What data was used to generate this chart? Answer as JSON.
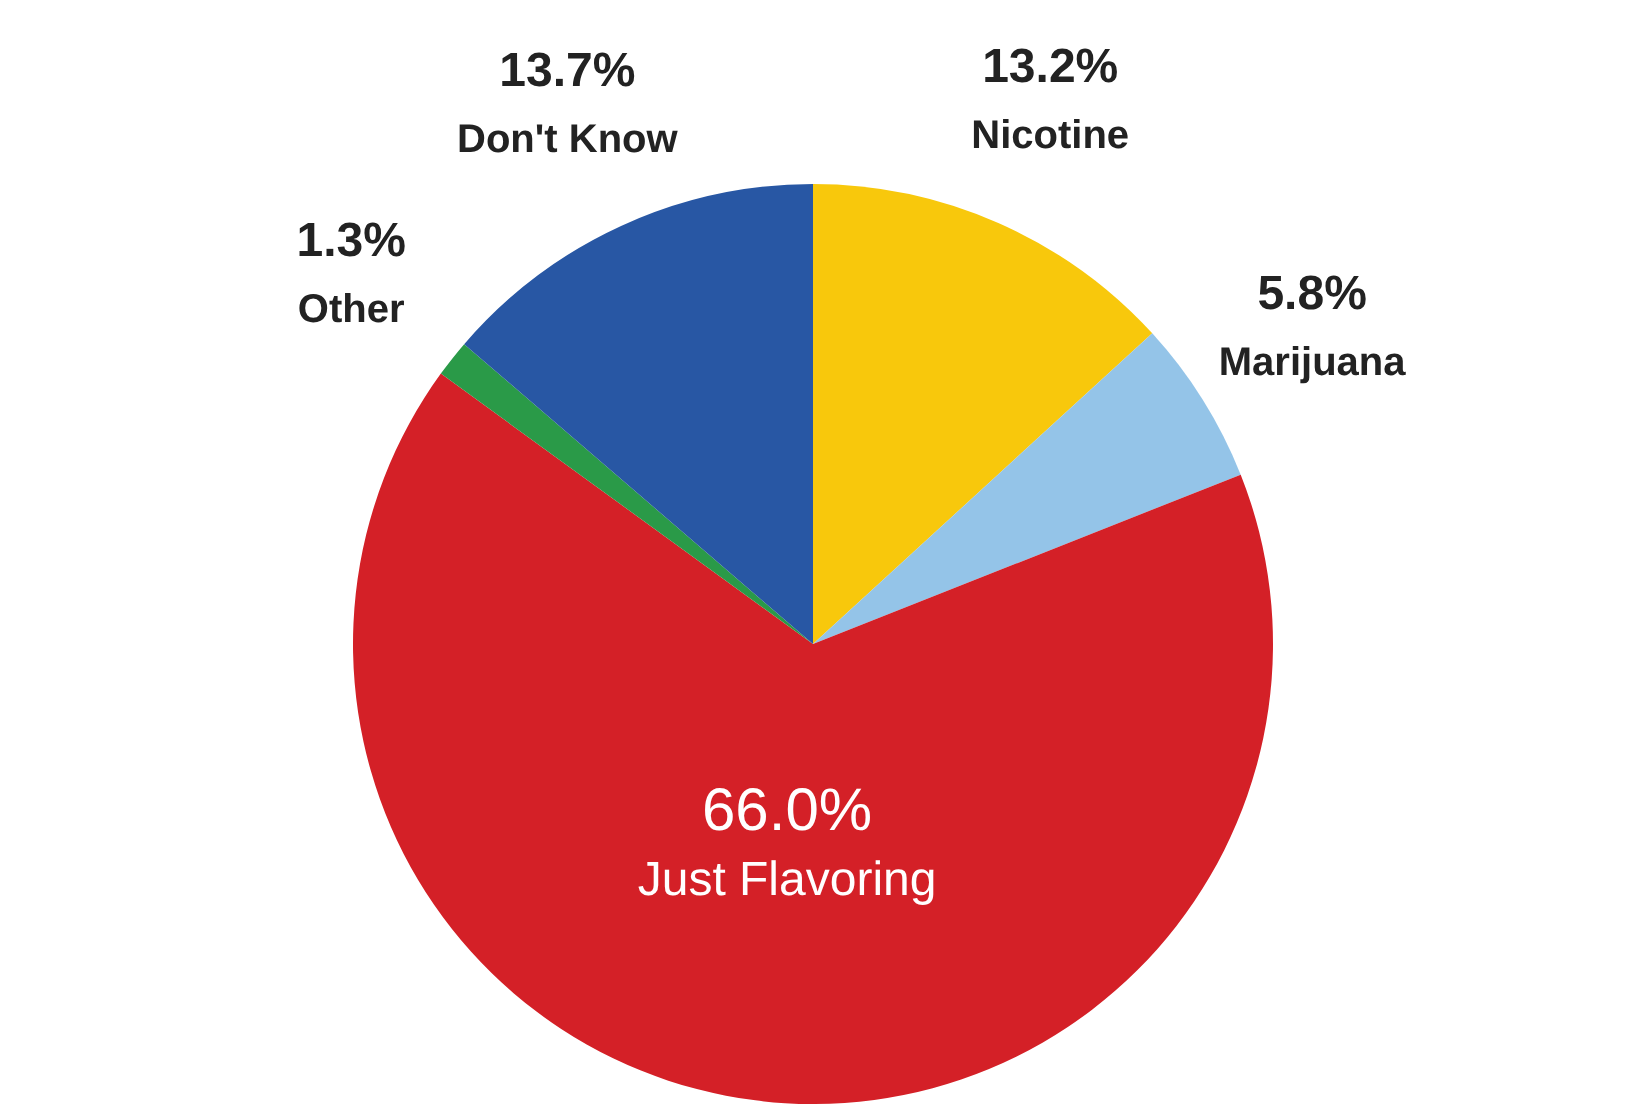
{
  "chart_data": {
    "type": "pie",
    "categories": [
      "Nicotine",
      "Marijuana",
      "Just Flavoring",
      "Other",
      "Don't Know"
    ],
    "values": [
      13.2,
      5.8,
      66.0,
      1.3,
      13.7
    ],
    "colors": [
      "#f8c80c",
      "#94c4e8",
      "#d42027",
      "#2a9a48",
      "#2857a4"
    ],
    "value_labels": [
      "13.2%",
      "5.8%",
      "66.0%",
      "1.3%",
      "13.7%"
    ],
    "legend": false
  }
}
